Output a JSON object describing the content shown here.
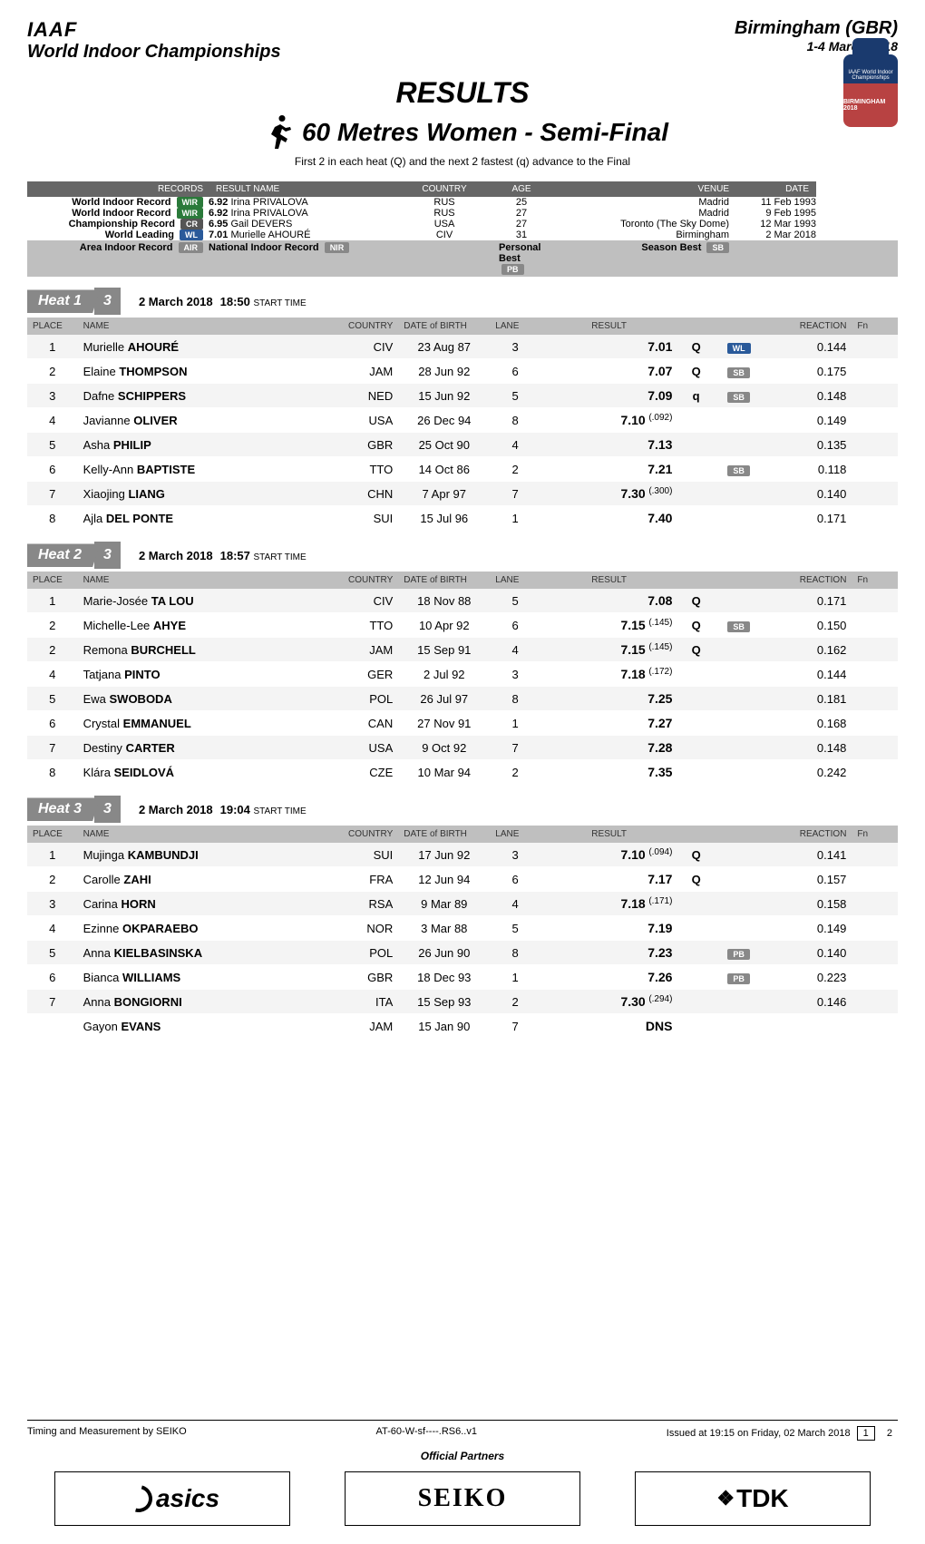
{
  "header": {
    "org": "IAAF",
    "championship": "World Indoor Championships",
    "venue": "Birmingham (GBR)",
    "date_range": "1-4 March 2018",
    "badge_top": "IAAF World Indoor Championships",
    "badge_bottom": "BIRMINGHAM 2018"
  },
  "titles": {
    "results": "RESULTS",
    "event": "60 Metres Women - Semi-Final",
    "subtitle": "First 2 in each heat (Q) and the next 2 fastest (q) advance to the Final"
  },
  "records": {
    "headers": {
      "records": "RECORDS",
      "result_name": "RESULT  NAME",
      "country": "COUNTRY",
      "age": "AGE",
      "venue": "VENUE",
      "date": "DATE"
    },
    "rows": [
      {
        "label": "World Indoor Record",
        "pill": "WIR",
        "pill_cls": "pill-wir",
        "result": "6.92",
        "name": "Irina PRIVALOVA",
        "country": "RUS",
        "age": "25",
        "venue": "Madrid",
        "date": "11 Feb 1993"
      },
      {
        "label": "World Indoor Record",
        "pill": "WIR",
        "pill_cls": "pill-wir",
        "result": "6.92",
        "name": "Irina PRIVALOVA",
        "country": "RUS",
        "age": "27",
        "venue": "Madrid",
        "date": "9 Feb 1995"
      },
      {
        "label": "Championship Record",
        "pill": "CR",
        "pill_cls": "pill-cr",
        "result": "6.95",
        "name": "Gail DEVERS",
        "country": "USA",
        "age": "27",
        "venue": "Toronto (The Sky Dome)",
        "date": "12 Mar 1993"
      },
      {
        "label": "World Leading",
        "pill": "WL",
        "pill_cls": "pill-wl",
        "result": "7.01",
        "name": "Murielle AHOURÉ",
        "country": "CIV",
        "age": "31",
        "venue": "Birmingham",
        "date": "2 Mar 2018"
      }
    ],
    "bottom": {
      "air_label": "Area Indoor Record",
      "air_pill": "AIR",
      "nir_label": "National Indoor Record",
      "nir_pill": "NIR",
      "pb_label": "Personal Best",
      "pb_pill": "PB",
      "sb_label": "Season Best",
      "sb_pill": "SB"
    }
  },
  "heats": [
    {
      "label": "Heat 1",
      "num": "3",
      "date": "2 March  2018",
      "time": "18:50",
      "time_label": "START TIME",
      "rows": [
        {
          "place": "1",
          "first": "Murielle",
          "last": "AHOURÉ",
          "country": "CIV",
          "dob": "23 Aug 87",
          "lane": "3",
          "result": "7.01",
          "detail": "",
          "q": "Q",
          "rec": "WL",
          "rec_cls": "pill-wl",
          "reaction": "0.144"
        },
        {
          "place": "2",
          "first": "Elaine",
          "last": "THOMPSON",
          "country": "JAM",
          "dob": "28 Jun 92",
          "lane": "6",
          "result": "7.07",
          "detail": "",
          "q": "Q",
          "rec": "SB",
          "rec_cls": "pill-sb",
          "reaction": "0.175"
        },
        {
          "place": "3",
          "first": "Dafne",
          "last": "SCHIPPERS",
          "country": "NED",
          "dob": "15 Jun 92",
          "lane": "5",
          "result": "7.09",
          "detail": "",
          "q": "q",
          "rec": "SB",
          "rec_cls": "pill-sb",
          "reaction": "0.148"
        },
        {
          "place": "4",
          "first": "Javianne",
          "last": "OLIVER",
          "country": "USA",
          "dob": "26 Dec 94",
          "lane": "8",
          "result": "7.10",
          "detail": "(.092)",
          "q": "",
          "rec": "",
          "rec_cls": "",
          "reaction": "0.149"
        },
        {
          "place": "5",
          "first": "Asha",
          "last": "PHILIP",
          "country": "GBR",
          "dob": "25 Oct 90",
          "lane": "4",
          "result": "7.13",
          "detail": "",
          "q": "",
          "rec": "",
          "rec_cls": "",
          "reaction": "0.135"
        },
        {
          "place": "6",
          "first": "Kelly-Ann",
          "last": "BAPTISTE",
          "country": "TTO",
          "dob": "14 Oct 86",
          "lane": "2",
          "result": "7.21",
          "detail": "",
          "q": "",
          "rec": "SB",
          "rec_cls": "pill-sb",
          "reaction": "0.118"
        },
        {
          "place": "7",
          "first": "Xiaojing",
          "last": "LIANG",
          "country": "CHN",
          "dob": "7 Apr 97",
          "lane": "7",
          "result": "7.30",
          "detail": "(.300)",
          "q": "",
          "rec": "",
          "rec_cls": "",
          "reaction": "0.140"
        },
        {
          "place": "8",
          "first": "Ajla",
          "last": "DEL PONTE",
          "country": "SUI",
          "dob": "15 Jul 96",
          "lane": "1",
          "result": "7.40",
          "detail": "",
          "q": "",
          "rec": "",
          "rec_cls": "",
          "reaction": "0.171"
        }
      ]
    },
    {
      "label": "Heat 2",
      "num": "3",
      "date": "2 March  2018",
      "time": "18:57",
      "time_label": "START TIME",
      "rows": [
        {
          "place": "1",
          "first": "Marie-Josée",
          "last": "TA LOU",
          "country": "CIV",
          "dob": "18 Nov 88",
          "lane": "5",
          "result": "7.08",
          "detail": "",
          "q": "Q",
          "rec": "",
          "rec_cls": "",
          "reaction": "0.171"
        },
        {
          "place": "2",
          "first": "Michelle-Lee",
          "last": "AHYE",
          "country": "TTO",
          "dob": "10 Apr 92",
          "lane": "6",
          "result": "7.15",
          "detail": "(.145)",
          "q": "Q",
          "rec": "SB",
          "rec_cls": "pill-sb",
          "reaction": "0.150"
        },
        {
          "place": "2",
          "first": "Remona",
          "last": "BURCHELL",
          "country": "JAM",
          "dob": "15 Sep 91",
          "lane": "4",
          "result": "7.15",
          "detail": "(.145)",
          "q": "Q",
          "rec": "",
          "rec_cls": "",
          "reaction": "0.162"
        },
        {
          "place": "4",
          "first": "Tatjana",
          "last": "PINTO",
          "country": "GER",
          "dob": "2 Jul 92",
          "lane": "3",
          "result": "7.18",
          "detail": "(.172)",
          "q": "",
          "rec": "",
          "rec_cls": "",
          "reaction": "0.144"
        },
        {
          "place": "5",
          "first": "Ewa",
          "last": "SWOBODA",
          "country": "POL",
          "dob": "26 Jul 97",
          "lane": "8",
          "result": "7.25",
          "detail": "",
          "q": "",
          "rec": "",
          "rec_cls": "",
          "reaction": "0.181"
        },
        {
          "place": "6",
          "first": "Crystal",
          "last": "EMMANUEL",
          "country": "CAN",
          "dob": "27 Nov 91",
          "lane": "1",
          "result": "7.27",
          "detail": "",
          "q": "",
          "rec": "",
          "rec_cls": "",
          "reaction": "0.168"
        },
        {
          "place": "7",
          "first": "Destiny",
          "last": "CARTER",
          "country": "USA",
          "dob": "9 Oct 92",
          "lane": "7",
          "result": "7.28",
          "detail": "",
          "q": "",
          "rec": "",
          "rec_cls": "",
          "reaction": "0.148"
        },
        {
          "place": "8",
          "first": "Klára",
          "last": "SEIDLOVÁ",
          "country": "CZE",
          "dob": "10 Mar 94",
          "lane": "2",
          "result": "7.35",
          "detail": "",
          "q": "",
          "rec": "",
          "rec_cls": "",
          "reaction": "0.242"
        }
      ]
    },
    {
      "label": "Heat 3",
      "num": "3",
      "date": "2 March  2018",
      "time": "19:04",
      "time_label": "START TIME",
      "rows": [
        {
          "place": "1",
          "first": "Mujinga",
          "last": "KAMBUNDJI",
          "country": "SUI",
          "dob": "17 Jun 92",
          "lane": "3",
          "result": "7.10",
          "detail": "(.094)",
          "q": "Q",
          "rec": "",
          "rec_cls": "",
          "reaction": "0.141"
        },
        {
          "place": "2",
          "first": "Carolle",
          "last": "ZAHI",
          "country": "FRA",
          "dob": "12 Jun 94",
          "lane": "6",
          "result": "7.17",
          "detail": "",
          "q": "Q",
          "rec": "",
          "rec_cls": "",
          "reaction": "0.157"
        },
        {
          "place": "3",
          "first": "Carina",
          "last": "HORN",
          "country": "RSA",
          "dob": "9 Mar 89",
          "lane": "4",
          "result": "7.18",
          "detail": "(.171)",
          "q": "",
          "rec": "",
          "rec_cls": "",
          "reaction": "0.158"
        },
        {
          "place": "4",
          "first": "Ezinne",
          "last": "OKPARAEBO",
          "country": "NOR",
          "dob": "3 Mar 88",
          "lane": "5",
          "result": "7.19",
          "detail": "",
          "q": "",
          "rec": "",
          "rec_cls": "",
          "reaction": "0.149"
        },
        {
          "place": "5",
          "first": "Anna",
          "last": "KIELBASINSKA",
          "country": "POL",
          "dob": "26 Jun 90",
          "lane": "8",
          "result": "7.23",
          "detail": "",
          "q": "",
          "rec": "PB",
          "rec_cls": "pill-pb",
          "reaction": "0.140"
        },
        {
          "place": "6",
          "first": "Bianca",
          "last": "WILLIAMS",
          "country": "GBR",
          "dob": "18 Dec 93",
          "lane": "1",
          "result": "7.26",
          "detail": "",
          "q": "",
          "rec": "PB",
          "rec_cls": "pill-pb",
          "reaction": "0.223"
        },
        {
          "place": "7",
          "first": "Anna",
          "last": "BONGIORNI",
          "country": "ITA",
          "dob": "15 Sep 93",
          "lane": "2",
          "result": "7.30",
          "detail": "(.294)",
          "q": "",
          "rec": "",
          "rec_cls": "",
          "reaction": "0.146"
        },
        {
          "place": "",
          "first": "Gayon",
          "last": "EVANS",
          "country": "JAM",
          "dob": "15 Jan 90",
          "lane": "7",
          "result": "DNS",
          "detail": "",
          "q": "",
          "rec": "",
          "rec_cls": "",
          "reaction": ""
        }
      ]
    }
  ],
  "table_headers": {
    "place": "PLACE",
    "name": "NAME",
    "country": "COUNTRY",
    "dob": "DATE of BIRTH",
    "lane": "LANE",
    "result": "RESULT",
    "reaction": "REACTION",
    "fn": "Fn"
  },
  "footer": {
    "left": "Timing and Measurement by SEIKO",
    "mid": "AT-60-W-sf----.RS6..v1",
    "right": "Issued at 19:15 on Friday, 02 March  2018",
    "page": "1",
    "pages": "2",
    "partners": "Official Partners",
    "sponsors": {
      "asics": "asics",
      "seiko": "SEIKO",
      "tdk": "TDK"
    }
  },
  "colors": {
    "header_grey": "#bfbfbf",
    "row_alt": "#f4f4f4",
    "heat_bg": "#888888"
  }
}
